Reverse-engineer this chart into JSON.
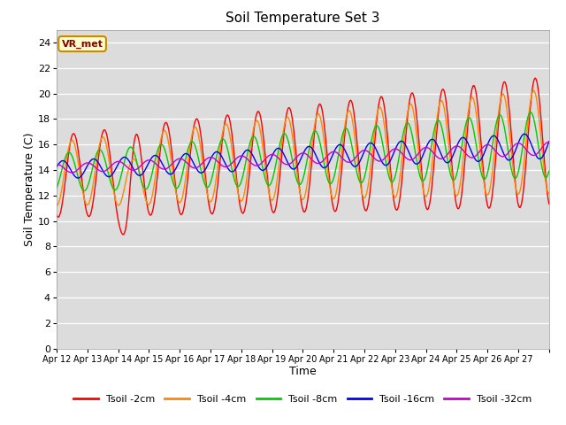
{
  "title": "Soil Temperature Set 3",
  "xlabel": "Time",
  "ylabel": "Soil Temperature (C)",
  "ylim": [
    0,
    25
  ],
  "yticks": [
    0,
    2,
    4,
    6,
    8,
    10,
    12,
    14,
    16,
    18,
    20,
    22,
    24
  ],
  "x_labels": [
    "Apr 12",
    "Apr 13",
    "Apr 14",
    "Apr 15",
    "Apr 16",
    "Apr 17",
    "Apr 18",
    "Apr 19",
    "Apr 20",
    "Apr 21",
    "Apr 22",
    "Apr 23",
    "Apr 24",
    "Apr 25",
    "Apr 26",
    "Apr 27"
  ],
  "n_days": 16,
  "points_per_day": 48,
  "series_colors": [
    "#ff0000",
    "#ff8800",
    "#00cc00",
    "#0000ff",
    "#cc00cc"
  ],
  "series_labels": [
    "Tsoil -2cm",
    "Tsoil -4cm",
    "Tsoil -8cm",
    "Tsoil -16cm",
    "Tsoil -32cm"
  ],
  "bg_color": "#dcdcdc",
  "annotation_text": "VR_met",
  "annotation_bg": "#ffffcc",
  "annotation_border": "#cc8800",
  "figsize": [
    6.4,
    4.8
  ],
  "dpi": 100
}
